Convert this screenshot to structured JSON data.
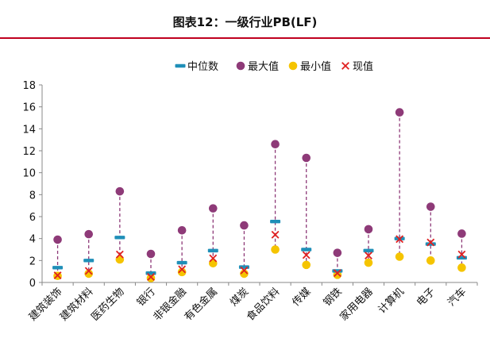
{
  "title": "图表12：一级行业PB(LF)",
  "colors": {
    "median": "#1f8fb8",
    "max": "#8e3a78",
    "min": "#f5c400",
    "current": "#e02020",
    "range_line": "#8e3a78",
    "title_rule": "#c0001f"
  },
  "chart_data": {
    "type": "scatter",
    "title": "图表12：一级行业PB(LF)",
    "categories": [
      "建筑装饰",
      "建筑材料",
      "医药生物",
      "银行",
      "非银金融",
      "有色金属",
      "煤炭",
      "食品饮料",
      "传媒",
      "钢铁",
      "家用电器",
      "计算机",
      "电子",
      "汽车"
    ],
    "ylim": [
      0,
      18
    ],
    "yticks": [
      0,
      2,
      4,
      6,
      8,
      10,
      12,
      14,
      16,
      18
    ],
    "grid": false,
    "legend_position": "top-right",
    "series": [
      {
        "name": "中位数",
        "marker": "dash",
        "values": [
          1.35,
          2.0,
          4.1,
          0.85,
          1.8,
          2.9,
          1.4,
          5.55,
          3.0,
          1.05,
          2.9,
          4.0,
          3.5,
          2.25
        ]
      },
      {
        "name": "最大值",
        "marker": "circle",
        "values": [
          3.9,
          4.4,
          8.3,
          2.6,
          4.75,
          6.75,
          5.2,
          12.6,
          11.35,
          2.7,
          4.85,
          15.5,
          6.9,
          4.45
        ]
      },
      {
        "name": "最小值",
        "marker": "circle",
        "values": [
          0.6,
          0.8,
          2.1,
          0.4,
          0.95,
          1.75,
          0.8,
          3.0,
          1.6,
          0.7,
          1.8,
          2.35,
          2.0,
          1.35
        ]
      },
      {
        "name": "现值",
        "marker": "x",
        "values": [
          0.65,
          1.05,
          2.55,
          0.5,
          1.2,
          2.2,
          1.1,
          4.35,
          2.5,
          0.85,
          2.45,
          3.95,
          3.65,
          2.55
        ]
      }
    ]
  }
}
